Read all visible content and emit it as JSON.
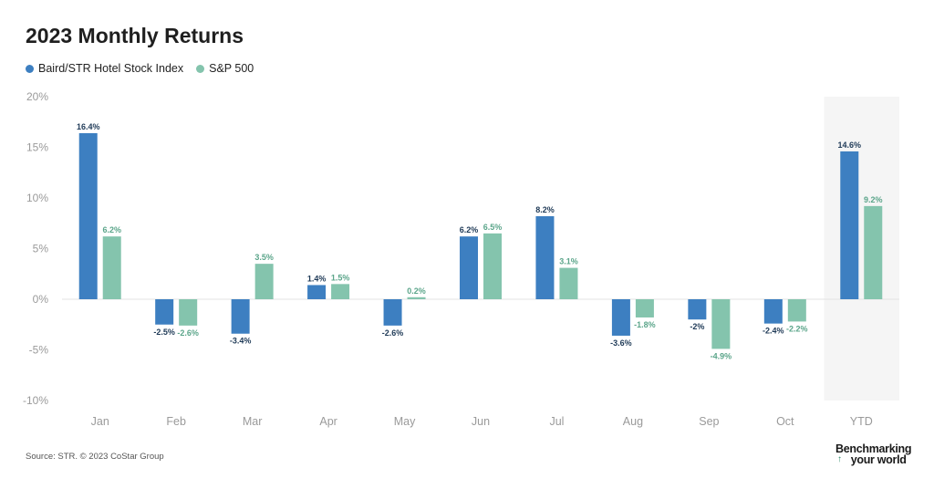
{
  "title": "2023 Monthly Returns",
  "colors": {
    "series1": "#3d7fc1",
    "series2": "#84c4ad",
    "highlight_bg": "#f5f5f5",
    "axis_text": "#9a9a9a"
  },
  "legend": [
    {
      "label": "Baird/STR Hotel Stock Index",
      "color": "#3d7fc1"
    },
    {
      "label": "S&P 500",
      "color": "#84c4ad"
    }
  ],
  "source": "Source: STR. © 2023 CoStar Group",
  "brand": {
    "line1": "Benchmarking",
    "line2": "your world",
    "icon": "arrow-up-icon"
  },
  "chart_data": {
    "type": "bar",
    "title": "2023 Monthly Returns",
    "xlabel": "",
    "ylabel": "",
    "ylim": [
      -10,
      20
    ],
    "yticks": [
      20,
      15,
      10,
      5,
      0,
      -5,
      -10
    ],
    "ytick_labels": [
      "20%",
      "15%",
      "10%",
      "5%",
      "0%",
      "-5%",
      "-10%"
    ],
    "categories": [
      "Jan",
      "Feb",
      "Mar",
      "Apr",
      "May",
      "Jun",
      "Jul",
      "Aug",
      "Sep",
      "Oct",
      "YTD"
    ],
    "highlight_category": "YTD",
    "series": [
      {
        "name": "Baird/STR Hotel Stock Index",
        "values": [
          16.4,
          -2.5,
          -3.4,
          1.4,
          -2.6,
          6.2,
          8.2,
          -3.6,
          -2,
          -2.4,
          14.6
        ],
        "labels": [
          "16.4%",
          "-2.5%",
          "-3.4%",
          "1.4%",
          "-2.6%",
          "6.2%",
          "8.2%",
          "-3.6%",
          "-2%",
          "-2.4%",
          "14.6%"
        ]
      },
      {
        "name": "S&P 500",
        "values": [
          6.2,
          -2.6,
          3.5,
          1.5,
          0.2,
          6.5,
          3.1,
          -1.8,
          -4.9,
          -2.2,
          9.2
        ],
        "labels": [
          "6.2%",
          "-2.6%",
          "3.5%",
          "1.5%",
          "0.2%",
          "6.5%",
          "3.1%",
          "-1.8%",
          "-4.9%",
          "-2.2%",
          "9.2%"
        ]
      }
    ]
  }
}
